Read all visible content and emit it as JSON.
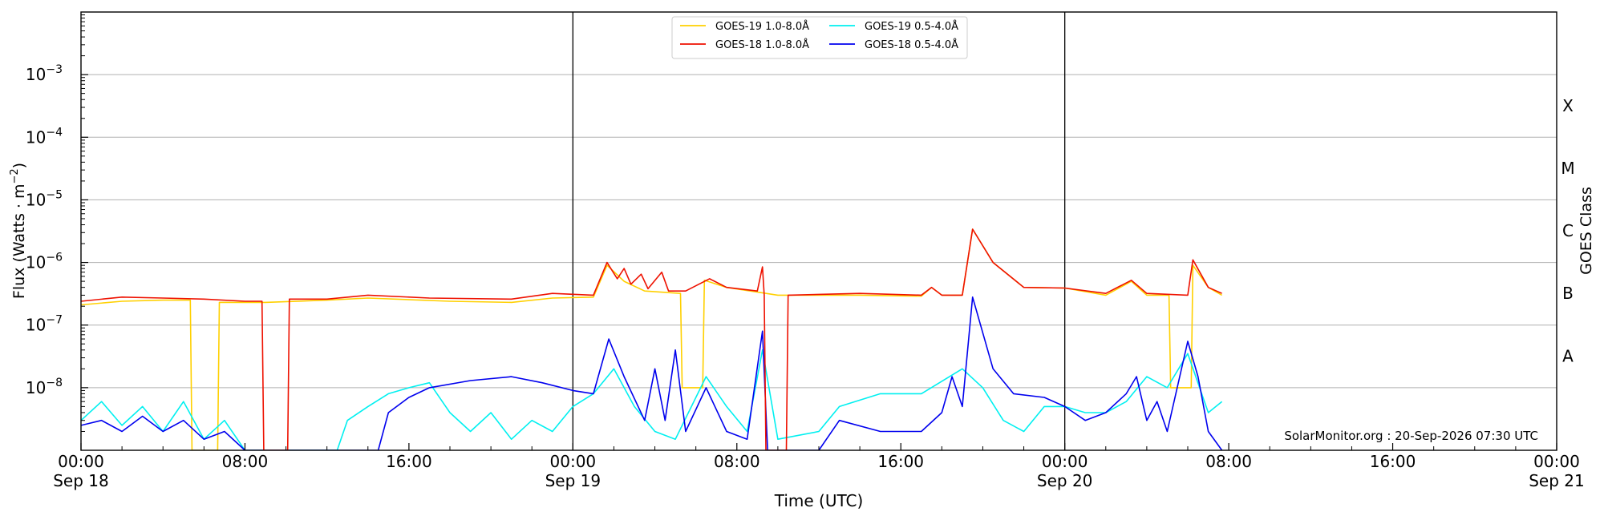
{
  "chart_data": {
    "type": "line",
    "xlabel": "Time (UTC)",
    "ylabel_main": "Flux (Watts · m",
    "ylabel_sup": "−2",
    "ylabel_close": ")",
    "right_label": "GOES Class",
    "y_scale": "log",
    "xlim": [
      "2026-09-18 00:00",
      "2026-09-21 00:00"
    ],
    "ylim": [
      1e-09,
      0.01
    ],
    "grid": "horizontal at decades",
    "legend_position": "top-center",
    "credit": "SolarMonitor.org : 20-Sep-2026 07:30 UTC",
    "x_ticks": [
      {
        "t": "2026-09-18 00:00",
        "label": "00:00",
        "sub": "Sep 18"
      },
      {
        "t": "2026-09-18 08:00",
        "label": "08:00",
        "sub": ""
      },
      {
        "t": "2026-09-18 16:00",
        "label": "16:00",
        "sub": ""
      },
      {
        "t": "2026-09-19 00:00",
        "label": "00:00",
        "sub": "Sep 19"
      },
      {
        "t": "2026-09-19 08:00",
        "label": "08:00",
        "sub": ""
      },
      {
        "t": "2026-09-19 16:00",
        "label": "16:00",
        "sub": ""
      },
      {
        "t": "2026-09-20 00:00",
        "label": "00:00",
        "sub": "Sep 20"
      },
      {
        "t": "2026-09-20 08:00",
        "label": "08:00",
        "sub": ""
      },
      {
        "t": "2026-09-20 16:00",
        "label": "16:00",
        "sub": ""
      },
      {
        "t": "2026-09-21 00:00",
        "label": "00:00",
        "sub": "Sep 21"
      }
    ],
    "y_ticks": [
      {
        "value": 1e-08,
        "mant": "10",
        "exp": "−8"
      },
      {
        "value": 1e-07,
        "mant": "10",
        "exp": "−7"
      },
      {
        "value": 1e-06,
        "mant": "10",
        "exp": "−6"
      },
      {
        "value": 1e-05,
        "mant": "10",
        "exp": "−5"
      },
      {
        "value": 0.0001,
        "mant": "10",
        "exp": "−4"
      },
      {
        "value": 0.001,
        "mant": "10",
        "exp": "−3"
      }
    ],
    "goes_classes": [
      {
        "label": "A",
        "value": 3.2e-08
      },
      {
        "label": "B",
        "value": 3.2e-07
      },
      {
        "label": "C",
        "value": 3.2e-06
      },
      {
        "label": "M",
        "value": 3.2e-05
      },
      {
        "label": "X",
        "value": 0.00032
      }
    ],
    "day_boundaries": [
      "2026-09-19 00:00",
      "2026-09-20 00:00"
    ],
    "series": [
      {
        "name": "GOES-19 1.0-8.0Å",
        "color": "#ffd000",
        "points": [
          [
            "2026-09-18 00:00",
            2.1e-07
          ],
          [
            "2026-09-18 02:00",
            2.4e-07
          ],
          [
            "2026-09-18 04:00",
            2.5e-07
          ],
          [
            "2026-09-18 05:20",
            2.5e-07
          ],
          [
            "2026-09-18 05:25",
            1e-09
          ],
          [
            "2026-09-18 06:40",
            1e-09
          ],
          [
            "2026-09-18 06:45",
            2.3e-07
          ],
          [
            "2026-09-18 09:00",
            2.3e-07
          ],
          [
            "2026-09-18 12:00",
            2.5e-07
          ],
          [
            "2026-09-18 14:00",
            2.7e-07
          ],
          [
            "2026-09-18 18:00",
            2.4e-07
          ],
          [
            "2026-09-18 21:00",
            2.3e-07
          ],
          [
            "2026-09-18 23:00",
            2.7e-07
          ],
          [
            "2026-09-19 01:00",
            2.8e-07
          ],
          [
            "2026-09-19 01:40",
            9e-07
          ],
          [
            "2026-09-19 02:30",
            5e-07
          ],
          [
            "2026-09-19 03:30",
            3.5e-07
          ],
          [
            "2026-09-19 05:15",
            3.2e-07
          ],
          [
            "2026-09-19 05:20",
            1e-08
          ],
          [
            "2026-09-19 06:20",
            1e-08
          ],
          [
            "2026-09-19 06:25",
            5.2e-07
          ],
          [
            "2026-09-19 07:30",
            4e-07
          ],
          [
            "2026-09-19 10:00",
            3e-07
          ],
          [
            "2026-09-19 14:00",
            3e-07
          ],
          [
            "2026-09-19 17:00",
            2.9e-07
          ],
          [
            "2026-09-19 17:30",
            4e-07
          ],
          [
            "2026-09-19 18:00",
            3e-07
          ],
          [
            "2026-09-19 19:00",
            3e-07
          ],
          [
            "2026-09-19 19:30",
            3.4e-06
          ],
          [
            "2026-09-19 20:30",
            1e-06
          ],
          [
            "2026-09-19 22:00",
            4e-07
          ],
          [
            "2026-09-20 00:00",
            3.9e-07
          ],
          [
            "2026-09-20 02:00",
            3e-07
          ],
          [
            "2026-09-20 03:15",
            5e-07
          ],
          [
            "2026-09-20 04:00",
            3e-07
          ],
          [
            "2026-09-20 05:05",
            3e-07
          ],
          [
            "2026-09-20 05:10",
            1e-08
          ],
          [
            "2026-09-20 06:10",
            1e-08
          ],
          [
            "2026-09-20 06:15",
            9e-07
          ],
          [
            "2026-09-20 07:00",
            4e-07
          ],
          [
            "2026-09-20 07:40",
            3e-07
          ]
        ]
      },
      {
        "name": "GOES-18 1.0-8.0Å",
        "color": "#ee1100",
        "points": [
          [
            "2026-09-18 00:00",
            2.4e-07
          ],
          [
            "2026-09-18 02:00",
            2.8e-07
          ],
          [
            "2026-09-18 04:00",
            2.7e-07
          ],
          [
            "2026-09-18 06:00",
            2.6e-07
          ],
          [
            "2026-09-18 08:00",
            2.4e-07
          ],
          [
            "2026-09-18 08:50",
            2.4e-07
          ],
          [
            "2026-09-18 08:55",
            1e-09
          ],
          [
            "2026-09-18 10:05",
            1e-09
          ],
          [
            "2026-09-18 10:10",
            2.6e-07
          ],
          [
            "2026-09-18 12:00",
            2.6e-07
          ],
          [
            "2026-09-18 14:00",
            3e-07
          ],
          [
            "2026-09-18 17:00",
            2.7e-07
          ],
          [
            "2026-09-18 21:00",
            2.6e-07
          ],
          [
            "2026-09-18 23:00",
            3.2e-07
          ],
          [
            "2026-09-19 01:00",
            3e-07
          ],
          [
            "2026-09-19 01:40",
            1e-06
          ],
          [
            "2026-09-19 02:10",
            5.5e-07
          ],
          [
            "2026-09-19 02:30",
            8e-07
          ],
          [
            "2026-09-19 02:50",
            4.5e-07
          ],
          [
            "2026-09-19 03:20",
            6.5e-07
          ],
          [
            "2026-09-19 03:40",
            3.8e-07
          ],
          [
            "2026-09-19 04:20",
            7e-07
          ],
          [
            "2026-09-19 04:40",
            3.5e-07
          ],
          [
            "2026-09-19 05:30",
            3.5e-07
          ],
          [
            "2026-09-19 06:40",
            5.5e-07
          ],
          [
            "2026-09-19 07:30",
            4e-07
          ],
          [
            "2026-09-19 09:00",
            3.5e-07
          ],
          [
            "2026-09-19 09:15",
            8.5e-07
          ],
          [
            "2026-09-19 09:20",
            3e-07
          ],
          [
            "2026-09-19 09:25",
            1e-09
          ],
          [
            "2026-09-19 10:25",
            1e-09
          ],
          [
            "2026-09-19 10:30",
            3e-07
          ],
          [
            "2026-09-19 14:00",
            3.2e-07
          ],
          [
            "2026-09-19 17:00",
            3e-07
          ],
          [
            "2026-09-19 17:30",
            4e-07
          ],
          [
            "2026-09-19 18:00",
            3e-07
          ],
          [
            "2026-09-19 19:00",
            3e-07
          ],
          [
            "2026-09-19 19:30",
            3.4e-06
          ],
          [
            "2026-09-19 20:30",
            1e-06
          ],
          [
            "2026-09-19 22:00",
            4e-07
          ],
          [
            "2026-09-20 00:00",
            3.9e-07
          ],
          [
            "2026-09-20 02:00",
            3.2e-07
          ],
          [
            "2026-09-20 03:15",
            5.2e-07
          ],
          [
            "2026-09-20 04:00",
            3.2e-07
          ],
          [
            "2026-09-20 06:00",
            3e-07
          ],
          [
            "2026-09-20 06:15",
            1.1e-06
          ],
          [
            "2026-09-20 07:00",
            4e-07
          ],
          [
            "2026-09-20 07:40",
            3.2e-07
          ]
        ]
      },
      {
        "name": "GOES-19 0.5-4.0Å",
        "color": "#00f0f0",
        "points": [
          [
            "2026-09-18 00:00",
            3e-09
          ],
          [
            "2026-09-18 01:00",
            6e-09
          ],
          [
            "2026-09-18 02:00",
            2.5e-09
          ],
          [
            "2026-09-18 03:00",
            5e-09
          ],
          [
            "2026-09-18 04:00",
            2e-09
          ],
          [
            "2026-09-18 05:00",
            6e-09
          ],
          [
            "2026-09-18 06:00",
            1.5e-09
          ],
          [
            "2026-09-18 07:00",
            3e-09
          ],
          [
            "2026-09-18 08:00",
            1e-09
          ],
          [
            "2026-09-18 12:30",
            1e-09
          ],
          [
            "2026-09-18 13:00",
            3e-09
          ],
          [
            "2026-09-18 14:00",
            5e-09
          ],
          [
            "2026-09-18 15:00",
            8e-09
          ],
          [
            "2026-09-18 16:00",
            1e-08
          ],
          [
            "2026-09-18 17:00",
            1.2e-08
          ],
          [
            "2026-09-18 18:00",
            4e-09
          ],
          [
            "2026-09-18 19:00",
            2e-09
          ],
          [
            "2026-09-18 20:00",
            4e-09
          ],
          [
            "2026-09-18 21:00",
            1.5e-09
          ],
          [
            "2026-09-18 22:00",
            3e-09
          ],
          [
            "2026-09-18 23:00",
            2e-09
          ],
          [
            "2026-09-19 00:00",
            5e-09
          ],
          [
            "2026-09-19 01:00",
            8e-09
          ],
          [
            "2026-09-19 02:00",
            2e-08
          ],
          [
            "2026-09-19 03:00",
            5e-09
          ],
          [
            "2026-09-19 04:00",
            2e-09
          ],
          [
            "2026-09-19 05:00",
            1.5e-09
          ],
          [
            "2026-09-19 06:30",
            1.5e-08
          ],
          [
            "2026-09-19 07:30",
            5e-09
          ],
          [
            "2026-09-19 08:30",
            2e-09
          ],
          [
            "2026-09-19 09:15",
            4e-08
          ],
          [
            "2026-09-19 10:00",
            1.5e-09
          ],
          [
            "2026-09-19 12:00",
            2e-09
          ],
          [
            "2026-09-19 13:00",
            5e-09
          ],
          [
            "2026-09-19 15:00",
            8e-09
          ],
          [
            "2026-09-19 17:00",
            8e-09
          ],
          [
            "2026-09-19 19:00",
            2e-08
          ],
          [
            "2026-09-19 20:00",
            1e-08
          ],
          [
            "2026-09-19 21:00",
            3e-09
          ],
          [
            "2026-09-19 22:00",
            2e-09
          ],
          [
            "2026-09-19 23:00",
            5e-09
          ],
          [
            "2026-09-20 00:00",
            5e-09
          ],
          [
            "2026-09-20 01:00",
            4e-09
          ],
          [
            "2026-09-20 02:00",
            4e-09
          ],
          [
            "2026-09-20 03:00",
            6e-09
          ],
          [
            "2026-09-20 04:00",
            1.5e-08
          ],
          [
            "2026-09-20 05:00",
            1e-08
          ],
          [
            "2026-09-20 06:00",
            3.5e-08
          ],
          [
            "2026-09-20 07:00",
            4e-09
          ],
          [
            "2026-09-20 07:40",
            6e-09
          ]
        ]
      },
      {
        "name": "GOES-18 0.5-4.0Å",
        "color": "#0000ee",
        "points": [
          [
            "2026-09-18 00:00",
            2.5e-09
          ],
          [
            "2026-09-18 01:00",
            3e-09
          ],
          [
            "2026-09-18 02:00",
            2e-09
          ],
          [
            "2026-09-18 03:00",
            3.5e-09
          ],
          [
            "2026-09-18 04:00",
            2e-09
          ],
          [
            "2026-09-18 05:00",
            3e-09
          ],
          [
            "2026-09-18 06:00",
            1.5e-09
          ],
          [
            "2026-09-18 07:00",
            2e-09
          ],
          [
            "2026-09-18 08:00",
            1e-09
          ],
          [
            "2026-09-18 14:30",
            1e-09
          ],
          [
            "2026-09-18 15:00",
            4e-09
          ],
          [
            "2026-09-18 16:00",
            7e-09
          ],
          [
            "2026-09-18 17:00",
            1e-08
          ],
          [
            "2026-09-18 19:00",
            1.3e-08
          ],
          [
            "2026-09-18 21:00",
            1.5e-08
          ],
          [
            "2026-09-18 22:30",
            1.2e-08
          ],
          [
            "2026-09-19 00:00",
            9e-09
          ],
          [
            "2026-09-19 01:00",
            8e-09
          ],
          [
            "2026-09-19 01:45",
            6e-08
          ],
          [
            "2026-09-19 02:30",
            1.5e-08
          ],
          [
            "2026-09-19 03:30",
            3e-09
          ],
          [
            "2026-09-19 04:00",
            2e-08
          ],
          [
            "2026-09-19 04:30",
            3e-09
          ],
          [
            "2026-09-19 05:00",
            4e-08
          ],
          [
            "2026-09-19 05:30",
            2e-09
          ],
          [
            "2026-09-19 06:30",
            1e-08
          ],
          [
            "2026-09-19 07:30",
            2e-09
          ],
          [
            "2026-09-19 08:30",
            1.5e-09
          ],
          [
            "2026-09-19 09:15",
            8e-08
          ],
          [
            "2026-09-19 09:30",
            1e-09
          ],
          [
            "2026-09-19 12:00",
            1e-09
          ],
          [
            "2026-09-19 13:00",
            3e-09
          ],
          [
            "2026-09-19 15:00",
            2e-09
          ],
          [
            "2026-09-19 17:00",
            2e-09
          ],
          [
            "2026-09-19 18:00",
            4e-09
          ],
          [
            "2026-09-19 18:30",
            1.5e-08
          ],
          [
            "2026-09-19 19:00",
            5e-09
          ],
          [
            "2026-09-19 19:30",
            2.8e-07
          ],
          [
            "2026-09-19 20:30",
            2e-08
          ],
          [
            "2026-09-19 21:30",
            8e-09
          ],
          [
            "2026-09-19 23:00",
            7e-09
          ],
          [
            "2026-09-20 00:00",
            5e-09
          ],
          [
            "2026-09-20 01:00",
            3e-09
          ],
          [
            "2026-09-20 02:00",
            4e-09
          ],
          [
            "2026-09-20 03:00",
            8e-09
          ],
          [
            "2026-09-20 03:30",
            1.5e-08
          ],
          [
            "2026-09-20 04:00",
            3e-09
          ],
          [
            "2026-09-20 04:30",
            6e-09
          ],
          [
            "2026-09-20 05:00",
            2e-09
          ],
          [
            "2026-09-20 06:00",
            5.5e-08
          ],
          [
            "2026-09-20 06:30",
            1.5e-08
          ],
          [
            "2026-09-20 07:00",
            2e-09
          ],
          [
            "2026-09-20 07:40",
            1e-09
          ]
        ]
      }
    ]
  }
}
